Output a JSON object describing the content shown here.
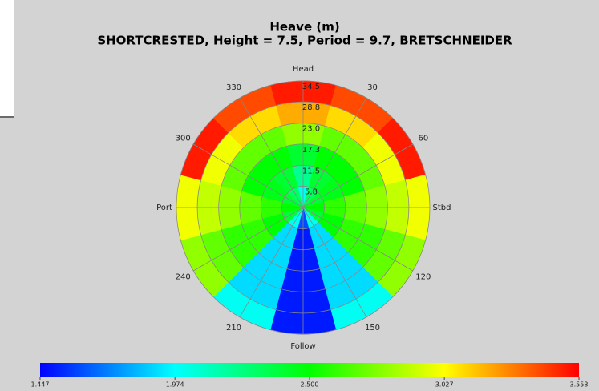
{
  "chart_data": {
    "type": "polar_heatmap",
    "title": "Heave (m)",
    "subtitle": "SHORTCRESTED, Height = 7.5, Period = 9.7, BRETSCHNEIDER",
    "thetaticks": [
      {
        "value": 0,
        "label": "Head"
      },
      30,
      60,
      {
        "value": 90,
        "label": "Stbd"
      },
      120,
      150,
      {
        "value": 180,
        "label": "Follow"
      },
      210,
      240,
      {
        "value": 270,
        "label": "Port"
      },
      300,
      330
    ],
    "rlim": [
      0,
      34.5
    ],
    "rticks": [
      5.8,
      11.5,
      17.3,
      {
        "value": 23,
        "label": "23.0"
      },
      28.8,
      34.5
    ],
    "values": [
      [
        2.0,
        2.2,
        2.4,
        2.8,
        3.2,
        3.5
      ],
      [
        2.3,
        2.4,
        2.5,
        2.7,
        3.1,
        3.4
      ],
      [
        2.4,
        2.45,
        2.5,
        2.7,
        3.0,
        3.5
      ],
      [
        2.5,
        2.6,
        2.7,
        2.8,
        2.9,
        3.0
      ],
      [
        2.4,
        2.5,
        2.6,
        2.6,
        2.7,
        2.8
      ],
      [
        2.0,
        1.9,
        1.9,
        1.9,
        1.9,
        2.0
      ],
      [
        1.6,
        1.5,
        1.5,
        1.5,
        1.5,
        1.5
      ],
      [
        2.0,
        1.9,
        1.9,
        1.9,
        1.9,
        2.0
      ],
      [
        2.4,
        2.5,
        2.6,
        2.6,
        2.7,
        2.8
      ],
      [
        2.5,
        2.6,
        2.7,
        2.8,
        2.9,
        3.0
      ],
      [
        2.4,
        2.45,
        2.5,
        2.7,
        3.0,
        3.5
      ],
      [
        2.3,
        2.4,
        2.5,
        2.7,
        3.1,
        3.4
      ]
    ],
    "colormap": [
      "#0000ff",
      "#00ffff",
      "#00ff00",
      "#ffff00",
      "#ff0000"
    ],
    "clim": [
      1.447,
      3.553
    ],
    "cticks": [
      1.447,
      1.974,
      {
        "value": 2.5,
        "label": "2.500"
      },
      3.027,
      3.553
    ],
    "grid": true
  }
}
